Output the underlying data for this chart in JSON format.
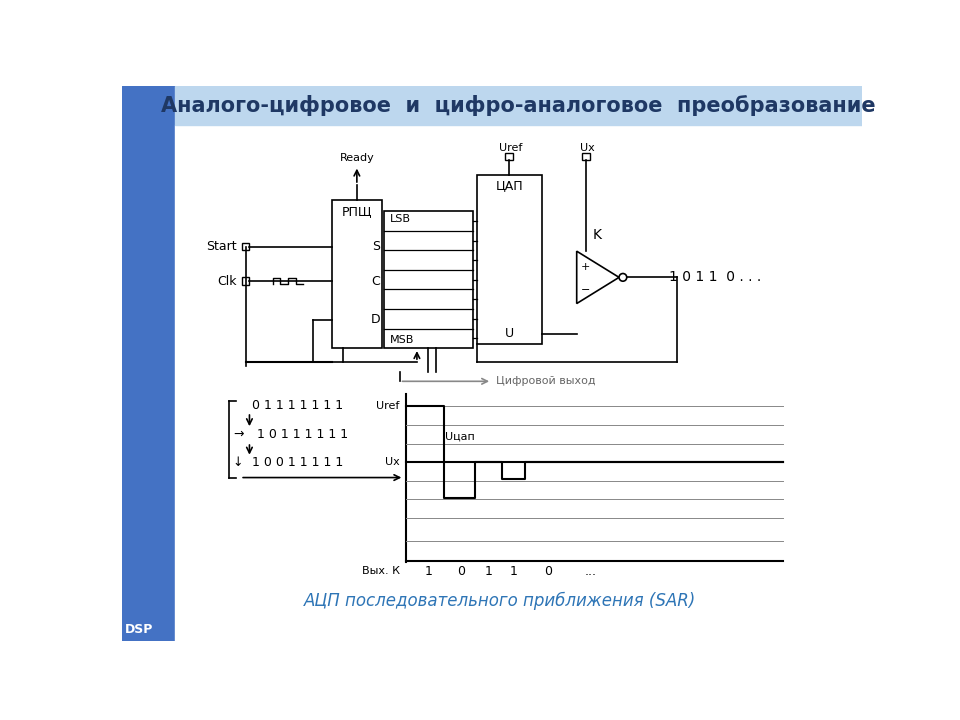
{
  "title": "Аналого-цифровое  и  цифро-аналоговое  преобразование",
  "title_color": "#1F3864",
  "title_bg": "#BDD7EE",
  "subtitle": "АЦП последовательного приближения (SAR)",
  "subtitle_color": "#2E75B6",
  "bg_color": "#FFFFFF",
  "left_bar_color": "#4472C4",
  "dsplabel": "DSP"
}
